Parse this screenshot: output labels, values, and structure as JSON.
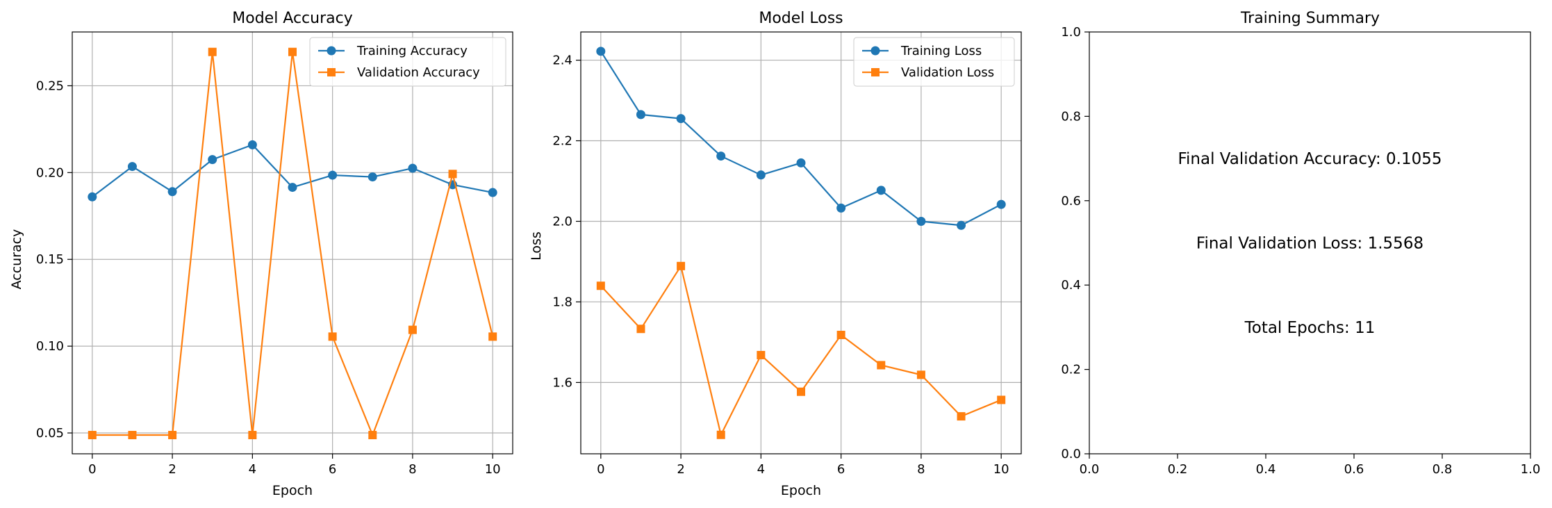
{
  "figure": {
    "background": "#ffffff"
  },
  "colors": {
    "training": "#1f77b4",
    "validation": "#ff7f0e",
    "grid": "#b0b0b0",
    "axis": "#000000"
  },
  "chart_data": [
    {
      "type": "line",
      "title": "Model Accuracy",
      "xlabel": "Epoch",
      "ylabel": "Accuracy",
      "xlim": [
        -0.5,
        10.5
      ],
      "ylim": [
        0.038,
        0.281
      ],
      "xticks": [
        0,
        2,
        4,
        6,
        8,
        10
      ],
      "xtick_labels": [
        "0",
        "2",
        "4",
        "6",
        "8",
        "10"
      ],
      "yticks": [
        0.05,
        0.1,
        0.15,
        0.2,
        0.25
      ],
      "ytick_labels": [
        "0.05",
        "0.10",
        "0.15",
        "0.20",
        "0.25"
      ],
      "grid": true,
      "legend_position": "top-right",
      "x": [
        0,
        1,
        2,
        3,
        4,
        5,
        6,
        7,
        8,
        9,
        10
      ],
      "series": [
        {
          "name": "Training Accuracy",
          "marker": "circle",
          "color": "#1f77b4",
          "values": [
            0.186,
            0.2035,
            0.189,
            0.2075,
            0.216,
            0.1915,
            0.1985,
            0.1975,
            0.2025,
            0.193,
            0.1885
          ]
        },
        {
          "name": "Validation Accuracy",
          "marker": "square",
          "color": "#ff7f0e",
          "values": [
            0.0488,
            0.0488,
            0.0488,
            0.2695,
            0.0488,
            0.2695,
            0.1055,
            0.0488,
            0.1094,
            0.1992,
            0.1055
          ]
        }
      ]
    },
    {
      "type": "line",
      "title": "Model Loss",
      "xlabel": "Epoch",
      "ylabel": "Loss",
      "xlim": [
        -0.5,
        10.5
      ],
      "ylim": [
        1.423,
        2.47
      ],
      "xticks": [
        0,
        2,
        4,
        6,
        8,
        10
      ],
      "xtick_labels": [
        "0",
        "2",
        "4",
        "6",
        "8",
        "10"
      ],
      "yticks": [
        1.6,
        1.8,
        2.0,
        2.2,
        2.4
      ],
      "ytick_labels": [
        "1.6",
        "1.8",
        "2.0",
        "2.2",
        "2.4"
      ],
      "grid": true,
      "legend_position": "top-right",
      "x": [
        0,
        1,
        2,
        3,
        4,
        5,
        6,
        7,
        8,
        9,
        10
      ],
      "series": [
        {
          "name": "Training Loss",
          "marker": "circle",
          "color": "#1f77b4",
          "values": [
            2.422,
            2.265,
            2.255,
            2.162,
            2.115,
            2.145,
            2.033,
            2.077,
            2.0,
            1.99,
            2.042
          ]
        },
        {
          "name": "Validation Loss",
          "marker": "square",
          "color": "#ff7f0e",
          "values": [
            1.84,
            1.733,
            1.889,
            1.47,
            1.668,
            1.577,
            1.718,
            1.643,
            1.619,
            1.516,
            1.5568
          ]
        }
      ]
    },
    {
      "type": "table",
      "title": "Training Summary",
      "xlim": [
        0,
        1
      ],
      "ylim": [
        0,
        1
      ],
      "xticks": [
        0,
        0.2,
        0.4,
        0.6,
        0.8,
        1.0
      ],
      "xtick_labels": [
        "0.0",
        "0.2",
        "0.4",
        "0.6",
        "0.8",
        "1.0"
      ],
      "yticks": [
        0,
        0.2,
        0.4,
        0.6,
        0.8,
        1.0
      ],
      "ytick_labels": [
        "0.0",
        "0.2",
        "0.4",
        "0.6",
        "0.8",
        "1.0"
      ],
      "grid": false,
      "annotations": [
        {
          "text": "Final Validation Accuracy: 0.1055",
          "x": 0.5,
          "y": 0.7
        },
        {
          "text": "Final Validation Loss: 1.5568",
          "x": 0.5,
          "y": 0.5
        },
        {
          "text": "Total Epochs: 11",
          "x": 0.5,
          "y": 0.3
        }
      ]
    }
  ]
}
